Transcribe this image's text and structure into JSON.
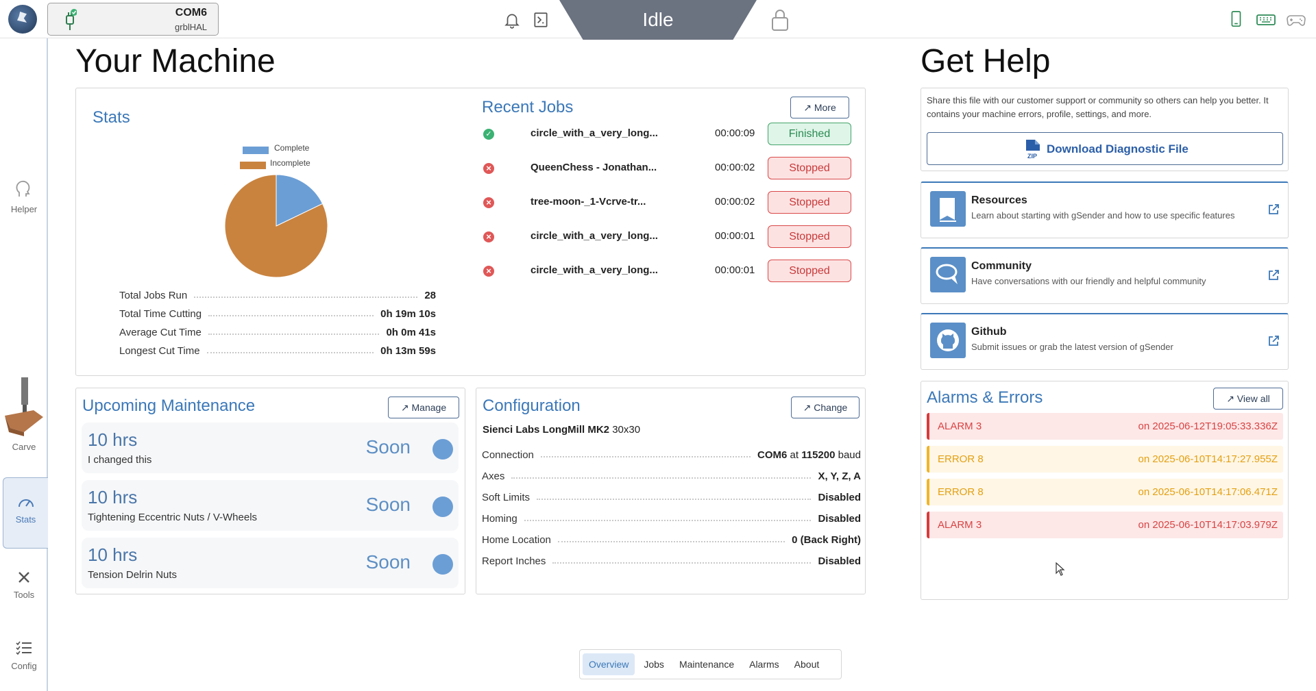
{
  "topbar": {
    "port": "COM6",
    "firmware": "grblHAL",
    "state": "Idle"
  },
  "sidebar": {
    "items": [
      {
        "label": "Helper"
      },
      {
        "label": "Carve"
      },
      {
        "label": "Stats"
      },
      {
        "label": "Tools"
      },
      {
        "label": "Config"
      }
    ]
  },
  "machine": {
    "title": "Your Machine",
    "stats": {
      "title": "Stats",
      "legend": [
        "Complete",
        "Incomplete"
      ],
      "rows": [
        {
          "k": "Total Jobs Run",
          "v": "28"
        },
        {
          "k": "Total Time Cutting",
          "v": "0h 19m 10s"
        },
        {
          "k": "Average Cut Time",
          "v": "0h 0m 41s"
        },
        {
          "k": "Longest Cut Time",
          "v": "0h 13m 59s"
        }
      ]
    },
    "recent_jobs": {
      "title": "Recent Jobs",
      "more_label": "↗ More",
      "jobs": [
        {
          "name": "circle_with_a_very_long...",
          "duration": "00:00:09",
          "status": "Finished"
        },
        {
          "name": "QueenChess - Jonathan...",
          "duration": "00:00:02",
          "status": "Stopped"
        },
        {
          "name": "tree-moon-_1-Vcrve-tr...",
          "duration": "00:00:02",
          "status": "Stopped"
        },
        {
          "name": "circle_with_a_very_long...",
          "duration": "00:00:01",
          "status": "Stopped"
        },
        {
          "name": "circle_with_a_very_long...",
          "duration": "00:00:01",
          "status": "Stopped"
        }
      ]
    },
    "maintenance": {
      "title": "Upcoming Maintenance",
      "manage_label": "↗ Manage",
      "items": [
        {
          "hrs": "10 hrs",
          "desc": "I changed this",
          "status": "Soon"
        },
        {
          "hrs": "10 hrs",
          "desc": "Tightening Eccentric Nuts / V-Wheels",
          "status": "Soon"
        },
        {
          "hrs": "10 hrs",
          "desc": "Tension Delrin Nuts",
          "status": "Soon"
        }
      ]
    },
    "configuration": {
      "title": "Configuration",
      "change_label": "↗ Change",
      "machine_name": "Sienci Labs LongMill MK2",
      "machine_size": "30x30",
      "connection": {
        "label": "Connection",
        "port": "COM6",
        "at": "at",
        "baud": "115200",
        "unit": "baud"
      },
      "rows": [
        {
          "k": "Axes",
          "v": "X, Y, Z, A"
        },
        {
          "k": "Soft Limits",
          "v": "Disabled"
        },
        {
          "k": "Homing",
          "v": "Disabled"
        },
        {
          "k": "Home Location",
          "v": "0 (Back Right)"
        },
        {
          "k": "Report Inches",
          "v": "Disabled"
        }
      ]
    }
  },
  "help": {
    "title": "Get Help",
    "diag_text": "Share this file with our customer support or community so others can help you better. It contains your machine errors, profile, settings, and more.",
    "diag_button": "Download Diagnostic File",
    "zip_label": "ZIP",
    "resources": [
      {
        "title": "Resources",
        "desc": "Learn about starting with gSender and how to use specific features"
      },
      {
        "title": "Community",
        "desc": "Have conversations with our friendly and helpful community"
      },
      {
        "title": "Github",
        "desc": "Submit issues or grab the latest version of gSender"
      }
    ],
    "alarms": {
      "title": "Alarms & Errors",
      "view_all_label": "↗ View all",
      "items": [
        {
          "code": "ALARM 3",
          "when": "on 2025-06-12T19:05:33.336Z",
          "type": "alarm"
        },
        {
          "code": "ERROR 8",
          "when": "on 2025-06-10T14:17:27.955Z",
          "type": "error"
        },
        {
          "code": "ERROR 8",
          "when": "on 2025-06-10T14:17:06.471Z",
          "type": "error"
        },
        {
          "code": "ALARM 3",
          "when": "on 2025-06-10T14:17:03.979Z",
          "type": "alarm"
        }
      ]
    }
  },
  "tabs": [
    "Overview",
    "Jobs",
    "Maintenance",
    "Alarms",
    "About"
  ],
  "chart_data": {
    "type": "pie",
    "labels": [
      "Complete",
      "Incomplete"
    ],
    "values": [
      5,
      23
    ],
    "colors": [
      "#6b9ed5",
      "#c9833f"
    ]
  }
}
